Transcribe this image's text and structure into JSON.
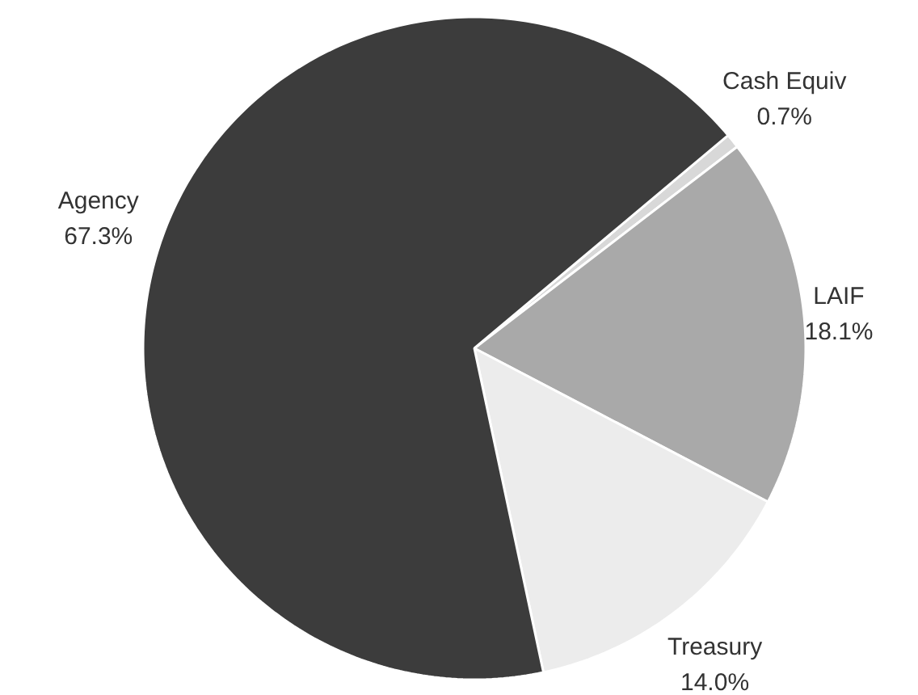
{
  "chart_data": {
    "type": "pie",
    "categories": [
      "Cash Equiv",
      "LAIF",
      "Treasury",
      "Agency"
    ],
    "values": [
      0.7,
      18.1,
      14.0,
      67.3
    ],
    "value_labels": [
      "0.7%",
      "18.1%",
      "14.0%",
      "67.3%"
    ],
    "colors": [
      "#d8d8d8",
      "#a9a9a9",
      "#ececec",
      "#3c3c3c"
    ]
  }
}
